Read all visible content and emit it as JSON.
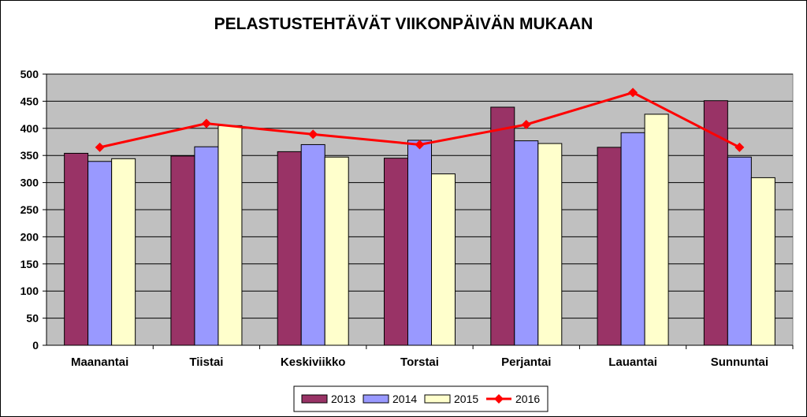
{
  "chart_data": {
    "type": "bar",
    "title": "PELASTUSTEHTÄVÄT VIIKONPÄIVÄN MUKAAN",
    "categories": [
      "Maanantai",
      "Tiistai",
      "Keskiviikko",
      "Torstai",
      "Perjantai",
      "Lauantai",
      "Sunnuntai"
    ],
    "ylim": [
      0,
      500
    ],
    "yticks": [
      0,
      50,
      100,
      150,
      200,
      250,
      300,
      350,
      400,
      450,
      500
    ],
    "grid": true,
    "plot_background": "#c0c0c0",
    "legend_position": "bottom",
    "series": [
      {
        "name": "2013",
        "kind": "bar",
        "color": "#993366",
        "values": [
          354,
          349,
          357,
          345,
          439,
          365,
          451
        ]
      },
      {
        "name": "2014",
        "kind": "bar",
        "color": "#9999ff",
        "values": [
          339,
          366,
          370,
          378,
          377,
          392,
          347
        ]
      },
      {
        "name": "2015",
        "kind": "bar",
        "color": "#ffffcc",
        "values": [
          344,
          405,
          347,
          316,
          372,
          426,
          309
        ]
      },
      {
        "name": "2016",
        "kind": "line",
        "color": "#ff0000",
        "values": [
          365,
          409,
          389,
          370,
          407,
          466,
          365
        ]
      }
    ]
  }
}
